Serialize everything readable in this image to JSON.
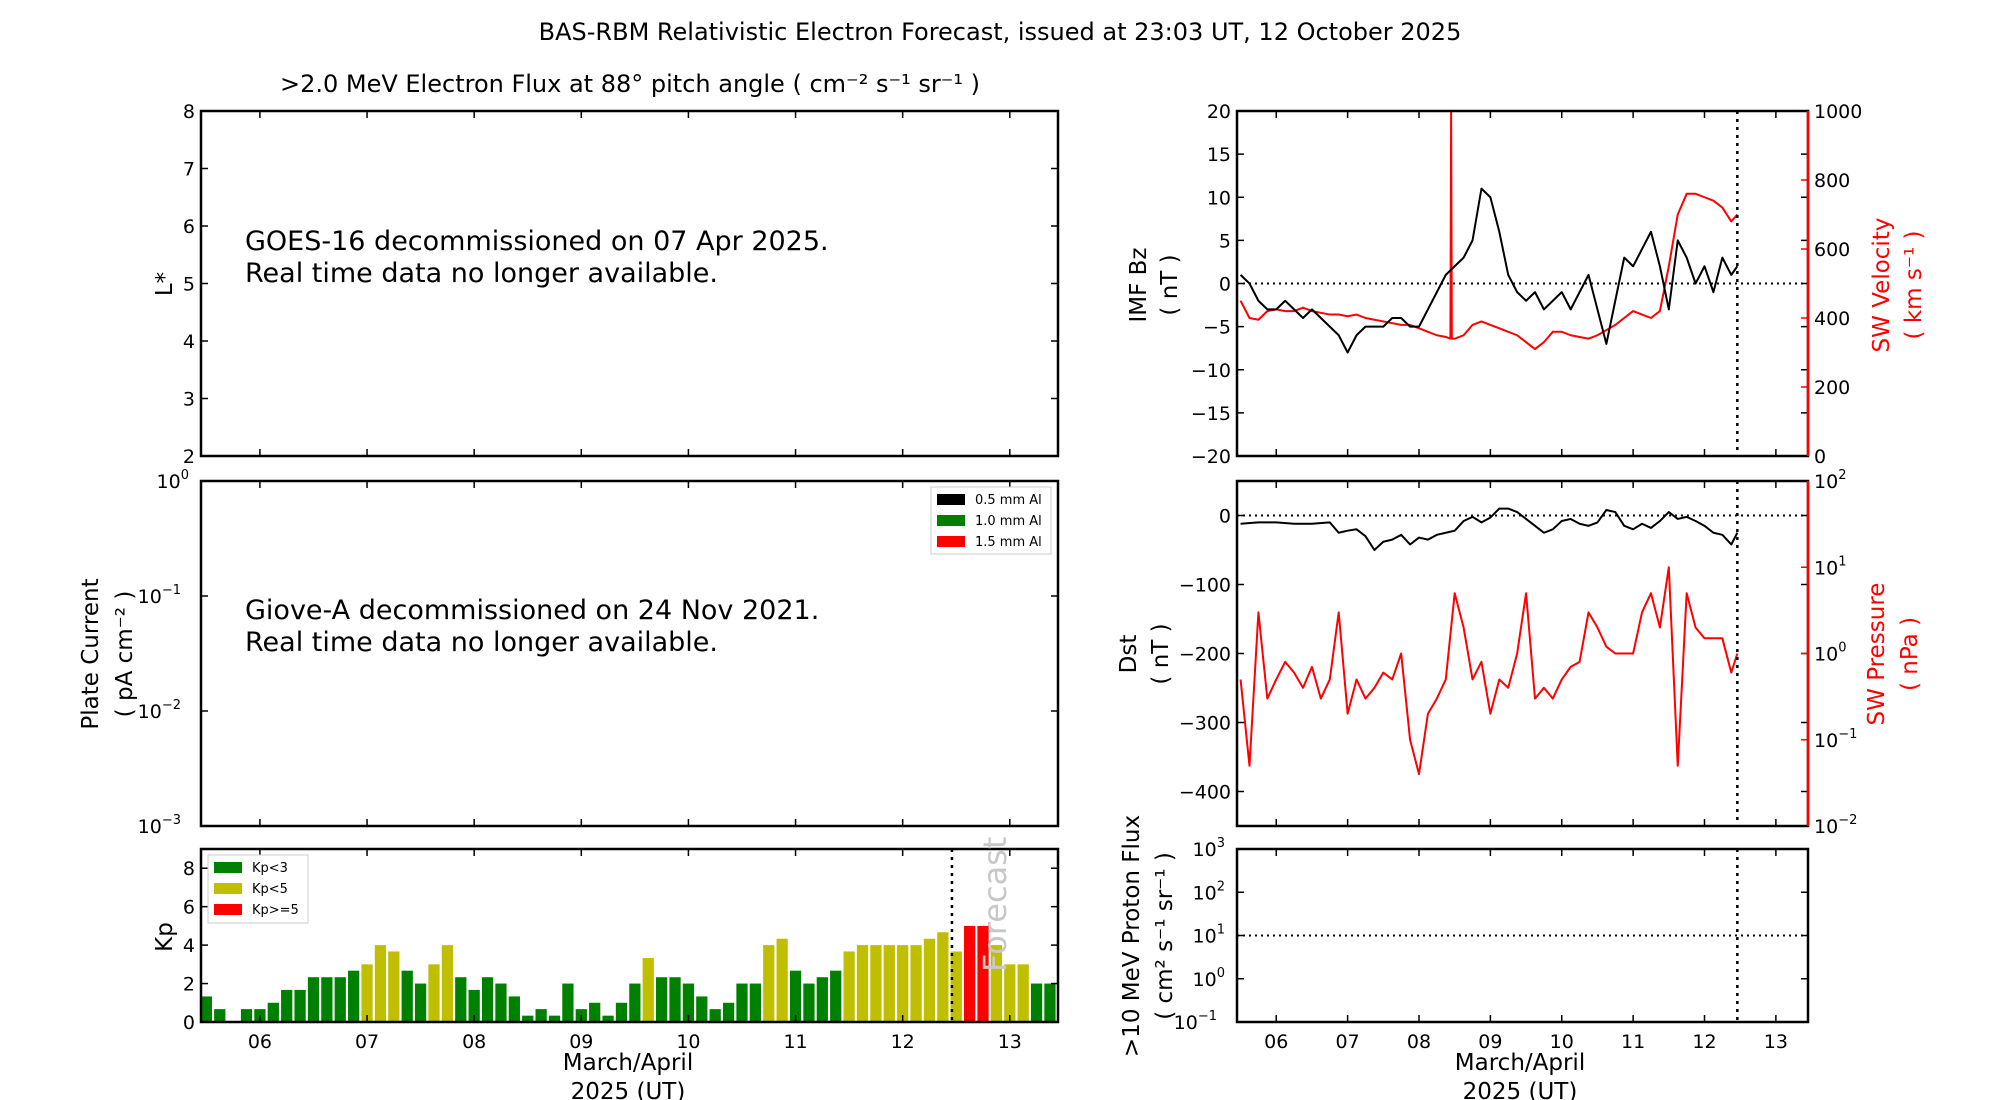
{
  "title": "BAS-RBM Relativistic Electron Forecast, issued at 23:03 UT, 12 October 2025",
  "colors": {
    "kp_low": "#008000",
    "kp_mid": "#bfbf00",
    "kp_high": "#ff0000",
    "sw": "#ff0000",
    "line": "#000000",
    "forecast_text": "#c8c8c8"
  },
  "x_axis": {
    "label_line1": "March/April",
    "label_line2": "2025 (UT)",
    "ticks": [
      6,
      7,
      8,
      9,
      10,
      11,
      12,
      13
    ],
    "tick_labels": [
      "06",
      "07",
      "08",
      "09",
      "10",
      "11",
      "12",
      "13"
    ],
    "range": [
      5.45,
      13.45
    ],
    "forecast_start": 12.46
  },
  "chart_data": [
    {
      "type": "line",
      "title": ">2.0 MeV Electron Flux at 88° pitch angle ( cm⁻² s⁻¹ sr⁻¹ )",
      "ylabel": "L*",
      "ylim": [
        2,
        8
      ],
      "yticks": [
        2,
        3,
        4,
        5,
        6,
        7,
        8
      ],
      "message_line1": "GOES-16 decommissioned on 07 Apr 2025.",
      "message_line2": "Real time data no longer available."
    },
    {
      "type": "line",
      "ylabel_line1": "Plate Current",
      "ylabel_line2": "( pA cm⁻² )",
      "yscale": "log",
      "ylim": [
        0.001,
        1
      ],
      "ytick_exponents": [
        "0",
        "−1",
        "−2",
        "−3"
      ],
      "legend": [
        {
          "name": "0.5 mm Al",
          "color": "#000000"
        },
        {
          "name": "1.0 mm Al",
          "color": "#008000"
        },
        {
          "name": "1.5 mm Al",
          "color": "#ff0000"
        }
      ],
      "legend_position": "top-right",
      "message_line1": "Giove-A decommissioned on 24 Nov 2021.",
      "message_line2": "Real time data no longer available."
    },
    {
      "type": "bar",
      "ylabel": "Kp",
      "ylim": [
        0,
        9
      ],
      "yticks": [
        0,
        2,
        4,
        6,
        8
      ],
      "legend": [
        {
          "name": "Kp<3",
          "color": "#008000"
        },
        {
          "name": "Kp<5",
          "color": "#bfbf00"
        },
        {
          "name": "Kp>=5",
          "color": "#ff0000"
        }
      ],
      "legend_position": "top-left",
      "forecast_label": "Forecast",
      "x_start": 5.5,
      "x_step": 0.125,
      "values": [
        1.33,
        0.67,
        0,
        0.67,
        0.67,
        1,
        1.67,
        1.67,
        2.33,
        2.33,
        2.33,
        2.67,
        3,
        4,
        3.67,
        2.67,
        2,
        3,
        4,
        2.33,
        1.67,
        2.33,
        2,
        1.33,
        0.33,
        0.67,
        0.33,
        2,
        0.67,
        1,
        0.33,
        1,
        2,
        3.33,
        2.33,
        2.33,
        2,
        1.33,
        0.67,
        1,
        2,
        2,
        4,
        4.33,
        2.67,
        2,
        2.33,
        2.67,
        3.67,
        4,
        4,
        4,
        4,
        4,
        4.33,
        4.67,
        3.67,
        5,
        5,
        4,
        3,
        3,
        2,
        2,
        3
      ]
    },
    {
      "type": "line",
      "ylabel_line1": "IMF Bz",
      "ylabel_line2": "( nT )",
      "ylim": [
        -20,
        20
      ],
      "yticks": [
        -20,
        -15,
        -10,
        -5,
        0,
        5,
        10,
        15,
        20
      ],
      "ytick_labels": [
        "−20",
        "−15",
        "−10",
        "−5",
        "0",
        "5",
        "10",
        "15",
        "20"
      ],
      "ylabel2_line1": "SW Velocity",
      "ylabel2_line2": "( km s⁻¹ )",
      "y2lim": [
        0,
        1000
      ],
      "y2ticks": [
        0,
        200,
        400,
        600,
        800,
        1000
      ],
      "series": [
        {
          "axis": "left",
          "color": "#000000",
          "x": [
            5.5,
            5.625,
            5.75,
            5.875,
            6,
            6.125,
            6.25,
            6.375,
            6.5,
            6.625,
            6.75,
            6.875,
            7,
            7.125,
            7.25,
            7.375,
            7.5,
            7.625,
            7.75,
            7.875,
            8,
            8.125,
            8.25,
            8.375,
            8.5,
            8.625,
            8.75,
            8.875,
            9,
            9.125,
            9.25,
            9.375,
            9.5,
            9.625,
            9.75,
            9.875,
            10,
            10.125,
            10.25,
            10.375,
            10.5,
            10.625,
            10.75,
            10.875,
            11,
            11.125,
            11.25,
            11.375,
            11.5,
            11.625,
            11.75,
            11.875,
            12,
            12.125,
            12.25,
            12.375,
            12.46
          ],
          "y": [
            1,
            0,
            -2,
            -3,
            -3,
            -2,
            -3,
            -4,
            -3,
            -4,
            -5,
            -6,
            -8,
            -6,
            -5,
            -5,
            -5,
            -4,
            -4,
            -5,
            -5,
            -3,
            -1,
            1,
            2,
            3,
            5,
            11,
            10,
            6,
            1,
            -1,
            -2,
            -1,
            -3,
            -2,
            -1,
            -3,
            -1,
            1,
            -3,
            -7,
            -2,
            3,
            2,
            4,
            6,
            2,
            -3,
            5,
            3,
            0,
            2,
            -1,
            3,
            1,
            2
          ]
        },
        {
          "axis": "right",
          "color": "#ff0000",
          "x": [
            5.5,
            5.625,
            5.75,
            5.875,
            6,
            6.125,
            6.25,
            6.375,
            6.5,
            6.625,
            6.75,
            6.875,
            7,
            7.125,
            7.25,
            7.375,
            7.5,
            7.625,
            7.75,
            7.875,
            8,
            8.125,
            8.25,
            8.375,
            8.44,
            8.45,
            8.46,
            8.5,
            8.625,
            8.75,
            8.875,
            9,
            9.125,
            9.25,
            9.375,
            9.5,
            9.625,
            9.75,
            9.875,
            10,
            10.125,
            10.25,
            10.375,
            10.5,
            10.625,
            10.75,
            10.875,
            11,
            11.125,
            11.25,
            11.375,
            11.5,
            11.625,
            11.75,
            11.875,
            12,
            12.125,
            12.25,
            12.375,
            12.46
          ],
          "y": [
            450,
            400,
            395,
            420,
            425,
            420,
            420,
            430,
            420,
            415,
            410,
            410,
            405,
            410,
            400,
            395,
            390,
            385,
            380,
            380,
            370,
            360,
            350,
            345,
            340,
            1000,
            340,
            340,
            350,
            380,
            390,
            380,
            370,
            360,
            350,
            330,
            310,
            330,
            360,
            360,
            350,
            345,
            340,
            350,
            365,
            380,
            400,
            420,
            410,
            400,
            420,
            550,
            700,
            760,
            760,
            750,
            740,
            720,
            680,
            700
          ]
        }
      ]
    },
    {
      "type": "line",
      "ylabel_line1": "Dst",
      "ylabel_line2": "( nT )",
      "ylim": [
        -450,
        50
      ],
      "yticks": [
        -400,
        -300,
        -200,
        -100,
        0
      ],
      "ytick_labels": [
        "−400",
        "−300",
        "−200",
        "−100",
        "0"
      ],
      "ylabel2_line1": "SW Pressure",
      "ylabel2_line2": "( nPa )",
      "y2scale": "log",
      "y2lim": [
        0.01,
        100
      ],
      "y2tick_exponents": [
        "−2",
        "−1",
        "0",
        "1",
        "2"
      ],
      "series": [
        {
          "axis": "left",
          "color": "#000000",
          "x": [
            5.5,
            5.75,
            6,
            6.25,
            6.5,
            6.75,
            6.875,
            7,
            7.125,
            7.25,
            7.375,
            7.5,
            7.625,
            7.75,
            7.875,
            8,
            8.125,
            8.25,
            8.375,
            8.5,
            8.625,
            8.75,
            8.875,
            9,
            9.125,
            9.25,
            9.375,
            9.5,
            9.625,
            9.75,
            9.875,
            10,
            10.125,
            10.25,
            10.375,
            10.5,
            10.625,
            10.75,
            10.875,
            11,
            11.125,
            11.25,
            11.375,
            11.5,
            11.625,
            11.75,
            11.875,
            12,
            12.125,
            12.25,
            12.375,
            12.46
          ],
          "y": [
            -12,
            -10,
            -10,
            -12,
            -12,
            -10,
            -25,
            -22,
            -20,
            -30,
            -50,
            -38,
            -35,
            -28,
            -42,
            -32,
            -35,
            -28,
            -25,
            -22,
            -8,
            -2,
            -10,
            -3,
            10,
            10,
            5,
            -5,
            -15,
            -25,
            -20,
            -8,
            -5,
            -12,
            -15,
            -10,
            8,
            5,
            -15,
            -20,
            -12,
            -18,
            -8,
            5,
            -5,
            -2,
            -8,
            -15,
            -25,
            -28,
            -42,
            -25
          ]
        },
        {
          "axis": "right",
          "color": "#ff0000",
          "x": [
            5.5,
            5.625,
            5.75,
            5.875,
            6,
            6.125,
            6.25,
            6.375,
            6.5,
            6.625,
            6.75,
            6.875,
            7,
            7.125,
            7.25,
            7.375,
            7.5,
            7.625,
            7.75,
            7.875,
            8,
            8.125,
            8.25,
            8.375,
            8.5,
            8.625,
            8.75,
            8.875,
            9,
            9.125,
            9.25,
            9.375,
            9.5,
            9.625,
            9.75,
            9.875,
            10,
            10.125,
            10.25,
            10.375,
            10.5,
            10.625,
            10.75,
            10.875,
            11,
            11.125,
            11.25,
            11.375,
            11.5,
            11.625,
            11.75,
            11.875,
            12,
            12.125,
            12.25,
            12.375,
            12.46
          ],
          "y": [
            0.5,
            0.05,
            3,
            0.3,
            0.5,
            0.8,
            0.6,
            0.4,
            0.7,
            0.3,
            0.5,
            3,
            0.2,
            0.5,
            0.3,
            0.4,
            0.6,
            0.5,
            1,
            0.1,
            0.04,
            0.2,
            0.3,
            0.5,
            5,
            2,
            0.5,
            0.8,
            0.2,
            0.5,
            0.4,
            1,
            5,
            0.3,
            0.4,
            0.3,
            0.5,
            0.7,
            0.8,
            3,
            2,
            1.2,
            1,
            1,
            1,
            3,
            5,
            2,
            10,
            0.05,
            5,
            2,
            1.5,
            1.5,
            1.5,
            0.6,
            1
          ]
        }
      ]
    },
    {
      "type": "line",
      "ylabel_line1": ">10 MeV Proton Flux",
      "ylabel_line2": "( cm² s⁻¹ sr⁻¹ )",
      "yscale": "log",
      "ylim": [
        0.1,
        1000
      ],
      "ytick_exponents": [
        "−1",
        "0",
        "1",
        "2",
        "3"
      ],
      "threshold": 10
    }
  ]
}
